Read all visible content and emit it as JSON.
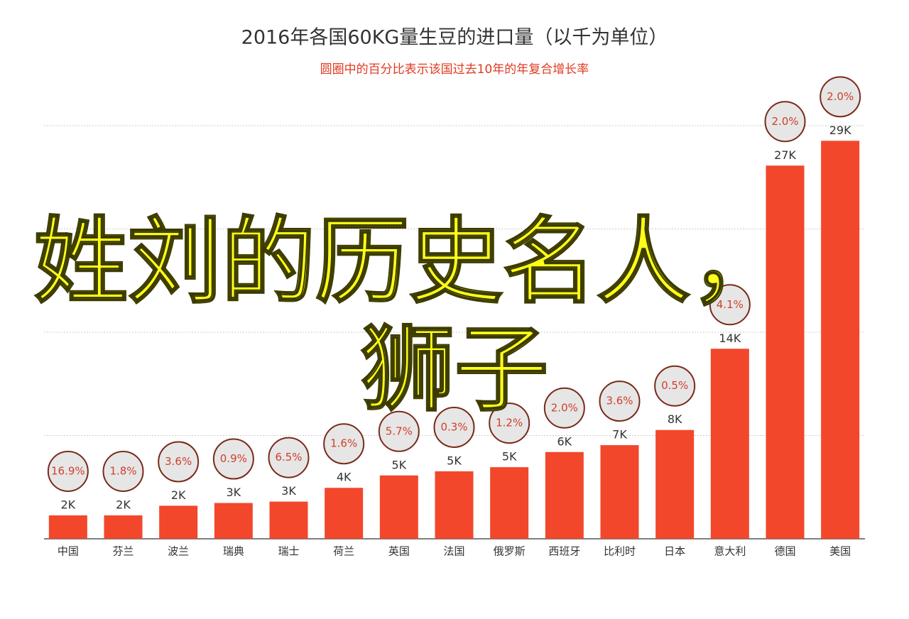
{
  "chart_data": {
    "type": "bar",
    "title": "2016年各国60KG量生豆的进口量（以千为单位）",
    "subtitle": "圆圈中的百分比表示该国过去10年的年复合增长率",
    "categories": [
      "中国",
      "芬兰",
      "波兰",
      "瑞典",
      "瑞士",
      "荷兰",
      "英国",
      "法国",
      "俄罗斯",
      "西班牙",
      "比利时",
      "日本",
      "意大利",
      "德国",
      "美国"
    ],
    "values": [
      1.7,
      1.7,
      2.4,
      2.6,
      2.7,
      3.7,
      4.6,
      4.9,
      5.2,
      6.3,
      6.8,
      7.9,
      13.8,
      27.1,
      28.9
    ],
    "value_labels": [
      "2K",
      "2K",
      "2K",
      "3K",
      "3K",
      "4K",
      "5K",
      "5K",
      "5K",
      "6K",
      "7K",
      "8K",
      "14K",
      "27K",
      "29K"
    ],
    "growth": [
      16.9,
      1.8,
      3.6,
      0.9,
      6.5,
      1.6,
      5.7,
      0.3,
      1.2,
      2.0,
      3.6,
      0.5,
      4.1,
      2.0,
      2.0
    ],
    "growth_labels": [
      "16.9%",
      "1.8%",
      "3.6%",
      "0.9%",
      "6.5%",
      "1.6%",
      "5.7%",
      "0.3%",
      "1.2%",
      "2.0%",
      "3.6%",
      "0.5%",
      "4.1%",
      "2.0%",
      "2.0%"
    ],
    "color": "#f2472b",
    "ylim": [
      0,
      30
    ],
    "yticks": [
      0,
      7.5,
      15,
      22.5,
      30
    ],
    "grid": true,
    "annotations": [
      "姓刘的历史名人，",
      "狮子"
    ]
  }
}
